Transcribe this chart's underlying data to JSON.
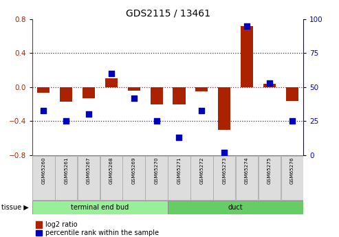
{
  "title": "GDS2115 / 13461",
  "samples": [
    "GSM65260",
    "GSM65261",
    "GSM65267",
    "GSM65268",
    "GSM65269",
    "GSM65270",
    "GSM65271",
    "GSM65272",
    "GSM65273",
    "GSM65274",
    "GSM65275",
    "GSM65276"
  ],
  "log2_ratio": [
    -0.07,
    -0.17,
    -0.13,
    0.1,
    -0.04,
    -0.2,
    -0.2,
    -0.05,
    -0.5,
    0.72,
    0.04,
    -0.16
  ],
  "percentile_rank": [
    33,
    25,
    30,
    60,
    42,
    25,
    13,
    33,
    2,
    95,
    53,
    25
  ],
  "groups": [
    {
      "label": "terminal end bud",
      "start": 0,
      "end": 6,
      "color": "#99EE99"
    },
    {
      "label": "duct",
      "start": 6,
      "end": 12,
      "color": "#66CC66"
    }
  ],
  "ylim_left": [
    -0.8,
    0.8
  ],
  "ylim_right": [
    0,
    100
  ],
  "yticks_left": [
    -0.8,
    -0.4,
    0.0,
    0.4,
    0.8
  ],
  "yticks_right": [
    0,
    25,
    50,
    75,
    100
  ],
  "bar_color": "#AA2200",
  "dot_color": "#0000BB",
  "zero_line_color": "#CC0000",
  "dotted_line_color": "#333333",
  "bg_color": "#FFFFFF",
  "plot_bg": "#FFFFFF",
  "sample_box_color": "#DDDDDD",
  "tissue_label": "tissue",
  "legend_log2": "log2 ratio",
  "legend_pct": "percentile rank within the sample"
}
